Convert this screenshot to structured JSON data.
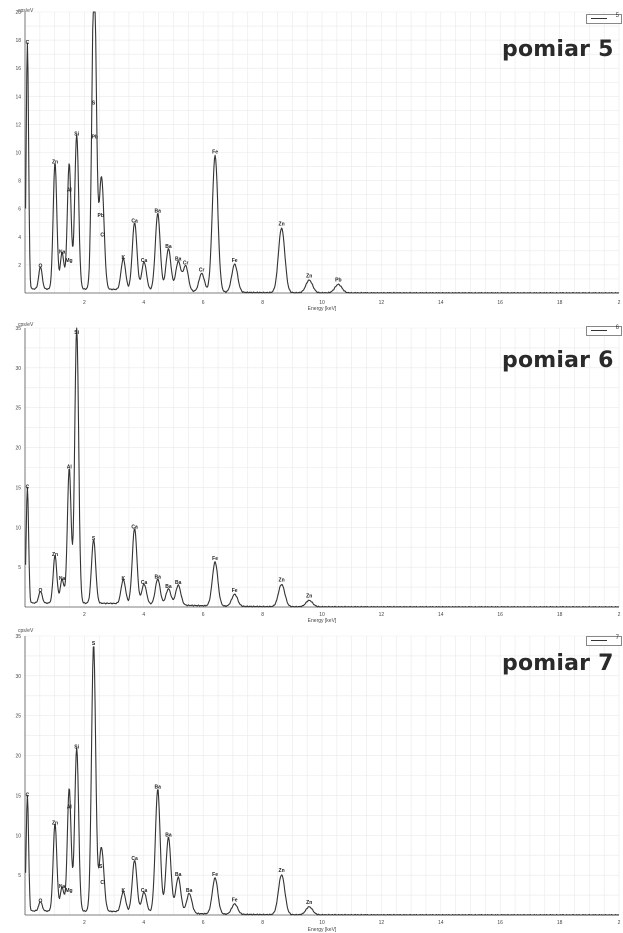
{
  "chart_data": [
    {
      "type": "line",
      "title": "pomiar 5",
      "xlabel": "Energy [keV]",
      "ylabel": "cps/eV",
      "legend": "5",
      "xlim": [
        0,
        20
      ],
      "ylim": [
        0,
        20
      ],
      "x_ticks": [
        "2",
        "4",
        "6",
        "8",
        "10",
        "12",
        "14",
        "16",
        "18",
        "2"
      ],
      "y_ticks": [
        "2",
        "4",
        "6",
        "8",
        "10",
        "12",
        "14",
        "16",
        "18",
        "20"
      ],
      "peaks": [
        {
          "x": 0.08,
          "y": 17.5,
          "label": "C"
        },
        {
          "x": 0.52,
          "y": 1.6,
          "label": "O"
        },
        {
          "x": 1.01,
          "y": 9.0,
          "label": "Zn"
        },
        {
          "x": 1.25,
          "y": 2.6,
          "label": "Na"
        },
        {
          "x": 1.48,
          "y": 2.0,
          "label": "Mg"
        },
        {
          "x": 1.49,
          "y": 7.0,
          "label": "Al"
        },
        {
          "x": 1.74,
          "y": 11.0,
          "label": "Si"
        },
        {
          "x": 2.31,
          "y": 13.2,
          "label": "S"
        },
        {
          "x": 2.35,
          "y": 10.8,
          "label": "Pb"
        },
        {
          "x": 2.55,
          "y": 5.2,
          "label": "Pb"
        },
        {
          "x": 2.62,
          "y": 3.8,
          "label": "Cl"
        },
        {
          "x": 3.31,
          "y": 2.2,
          "label": "K"
        },
        {
          "x": 3.69,
          "y": 4.8,
          "label": "Ca"
        },
        {
          "x": 4.01,
          "y": 2.0,
          "label": "Ca"
        },
        {
          "x": 4.47,
          "y": 5.5,
          "label": "Ba"
        },
        {
          "x": 4.83,
          "y": 3.0,
          "label": "Ba"
        },
        {
          "x": 5.16,
          "y": 2.1,
          "label": "Ba"
        },
        {
          "x": 5.41,
          "y": 1.8,
          "label": "Cr"
        },
        {
          "x": 5.95,
          "y": 1.3,
          "label": "Cr"
        },
        {
          "x": 6.4,
          "y": 9.7,
          "label": "Fe"
        },
        {
          "x": 7.06,
          "y": 2.0,
          "label": "Fe"
        },
        {
          "x": 8.64,
          "y": 4.6,
          "label": "Zn"
        },
        {
          "x": 9.57,
          "y": 0.9,
          "label": "Zn"
        },
        {
          "x": 10.55,
          "y": 0.6,
          "label": "Pb"
        }
      ]
    },
    {
      "type": "line",
      "title": "pomiar 6",
      "xlabel": "Energy [keV]",
      "ylabel": "cps/eV",
      "legend": "6",
      "xlim": [
        0,
        20
      ],
      "ylim": [
        0,
        35
      ],
      "x_ticks": [
        "2",
        "4",
        "6",
        "8",
        "10",
        "12",
        "14",
        "16",
        "18",
        "2"
      ],
      "y_ticks": [
        "5",
        "10",
        "15",
        "20",
        "25",
        "30",
        "35"
      ],
      "peaks": [
        {
          "x": 0.08,
          "y": 14.5,
          "label": "C"
        },
        {
          "x": 0.52,
          "y": 1.5,
          "label": "O"
        },
        {
          "x": 1.01,
          "y": 6.0,
          "label": "Zn"
        },
        {
          "x": 1.25,
          "y": 3.0,
          "label": "Na"
        },
        {
          "x": 1.49,
          "y": 17.0,
          "label": "Al"
        },
        {
          "x": 1.74,
          "y": 34.5,
          "label": "Si"
        },
        {
          "x": 2.31,
          "y": 8.0,
          "label": "S"
        },
        {
          "x": 3.31,
          "y": 3.0,
          "label": "K"
        },
        {
          "x": 3.69,
          "y": 9.5,
          "label": "Ca"
        },
        {
          "x": 4.01,
          "y": 2.5,
          "label": "Ca"
        },
        {
          "x": 4.47,
          "y": 3.2,
          "label": "Ba"
        },
        {
          "x": 4.83,
          "y": 2.0,
          "label": "Ba"
        },
        {
          "x": 5.16,
          "y": 2.5,
          "label": "Ba"
        },
        {
          "x": 6.4,
          "y": 5.5,
          "label": "Fe"
        },
        {
          "x": 7.06,
          "y": 1.5,
          "label": "Fe"
        },
        {
          "x": 8.64,
          "y": 2.8,
          "label": "Zn"
        },
        {
          "x": 9.57,
          "y": 0.8,
          "label": "Zn"
        }
      ]
    },
    {
      "type": "line",
      "title": "pomiar 7",
      "xlabel": "Energy [keV]",
      "ylabel": "cps/eV",
      "legend": "7",
      "xlim": [
        0,
        20
      ],
      "ylim": [
        0,
        35
      ],
      "x_ticks": [
        "2",
        "4",
        "6",
        "8",
        "10",
        "12",
        "14",
        "16",
        "18",
        "2"
      ],
      "y_ticks": [
        "5",
        "10",
        "15",
        "20",
        "25",
        "30",
        "35"
      ],
      "peaks": [
        {
          "x": 0.08,
          "y": 14.5,
          "label": "C"
        },
        {
          "x": 0.52,
          "y": 1.2,
          "label": "O"
        },
        {
          "x": 1.01,
          "y": 11.0,
          "label": "Zn"
        },
        {
          "x": 1.25,
          "y": 3.0,
          "label": "Na"
        },
        {
          "x": 1.48,
          "y": 2.5,
          "label": "Mg"
        },
        {
          "x": 1.49,
          "y": 13.0,
          "label": "Al"
        },
        {
          "x": 1.74,
          "y": 20.5,
          "label": "Si"
        },
        {
          "x": 2.31,
          "y": 33.5,
          "label": "S"
        },
        {
          "x": 2.55,
          "y": 5.5,
          "label": "S"
        },
        {
          "x": 2.62,
          "y": 3.5,
          "label": "Cl"
        },
        {
          "x": 3.31,
          "y": 2.5,
          "label": "K"
        },
        {
          "x": 3.69,
          "y": 6.5,
          "label": "Ca"
        },
        {
          "x": 4.01,
          "y": 2.5,
          "label": "Ca"
        },
        {
          "x": 4.47,
          "y": 15.5,
          "label": "Ba"
        },
        {
          "x": 4.83,
          "y": 9.5,
          "label": "Ba"
        },
        {
          "x": 5.16,
          "y": 4.5,
          "label": "Ba"
        },
        {
          "x": 5.53,
          "y": 2.5,
          "label": "Ba"
        },
        {
          "x": 6.4,
          "y": 4.5,
          "label": "Fe"
        },
        {
          "x": 7.06,
          "y": 1.3,
          "label": "Fe"
        },
        {
          "x": 8.64,
          "y": 5.0,
          "label": "Zn"
        },
        {
          "x": 9.57,
          "y": 1.0,
          "label": "Zn"
        }
      ]
    }
  ]
}
